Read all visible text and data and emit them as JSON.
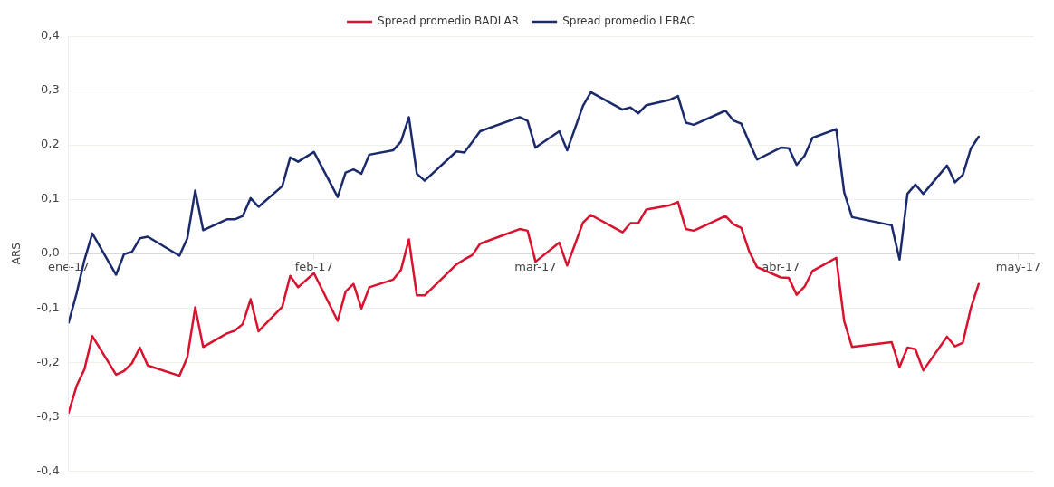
{
  "chart_data": {
    "type": "line",
    "ylabel": "ARS",
    "legend": "top",
    "grid": "y",
    "x": [
      "2017-01-01",
      "2017-01-02",
      "2017-01-03",
      "2017-01-04",
      "2017-01-07",
      "2017-01-08",
      "2017-01-09",
      "2017-01-10",
      "2017-01-11",
      "2017-01-15",
      "2017-01-16",
      "2017-01-17",
      "2017-01-18",
      "2017-01-21",
      "2017-01-22",
      "2017-01-23",
      "2017-01-24",
      "2017-01-25",
      "2017-01-28",
      "2017-01-29",
      "2017-01-30",
      "2017-02-01",
      "2017-02-04",
      "2017-02-05",
      "2017-02-06",
      "2017-02-07",
      "2017-02-08",
      "2017-02-11",
      "2017-02-12",
      "2017-02-13",
      "2017-02-14",
      "2017-02-15",
      "2017-02-19",
      "2017-02-20",
      "2017-02-21",
      "2017-02-22",
      "2017-02-27",
      "2017-02-28",
      "2017-03-01",
      "2017-03-04",
      "2017-03-05",
      "2017-03-07",
      "2017-03-08",
      "2017-03-12",
      "2017-03-13",
      "2017-03-14",
      "2017-03-15",
      "2017-03-18",
      "2017-03-19",
      "2017-03-20",
      "2017-03-21",
      "2017-03-25",
      "2017-03-26",
      "2017-03-27",
      "2017-03-28",
      "2017-03-29",
      "2017-04-01",
      "2017-04-02",
      "2017-04-03",
      "2017-04-04",
      "2017-04-05",
      "2017-04-08",
      "2017-04-09",
      "2017-04-10",
      "2017-04-15",
      "2017-04-16",
      "2017-04-17",
      "2017-04-18",
      "2017-04-19",
      "2017-04-22",
      "2017-04-23",
      "2017-04-24",
      "2017-04-25",
      "2017-04-26"
    ],
    "series": [
      {
        "name": "Spread promedio BADLAR",
        "color": "#d7132f",
        "values": [
          -0.293,
          -0.244,
          -0.213,
          -0.152,
          -0.223,
          -0.216,
          -0.202,
          -0.173,
          -0.206,
          -0.225,
          -0.191,
          -0.099,
          -0.172,
          -0.147,
          -0.142,
          -0.13,
          -0.084,
          -0.143,
          -0.098,
          -0.041,
          -0.062,
          -0.036,
          -0.124,
          -0.07,
          -0.056,
          -0.101,
          -0.062,
          -0.048,
          -0.03,
          0.026,
          -0.077,
          -0.077,
          -0.02,
          -0.011,
          -0.003,
          0.018,
          0.045,
          0.042,
          -0.015,
          0.02,
          -0.022,
          0.057,
          0.071,
          0.039,
          0.056,
          0.056,
          0.081,
          0.089,
          0.095,
          0.045,
          0.042,
          0.069,
          0.054,
          0.047,
          0.004,
          -0.025,
          -0.044,
          -0.045,
          -0.076,
          -0.061,
          -0.032,
          -0.008,
          -0.124,
          -0.172,
          -0.163,
          -0.209,
          -0.173,
          -0.176,
          -0.215,
          -0.153,
          -0.171,
          -0.164,
          -0.101,
          -0.056
        ]
      },
      {
        "name": "Spread promedio LEBAC",
        "color": "#1b2a6b",
        "values": [
          -0.127,
          -0.074,
          -0.012,
          0.037,
          -0.039,
          -0.001,
          0.003,
          0.028,
          0.031,
          -0.004,
          0.028,
          0.116,
          0.043,
          0.063,
          0.063,
          0.069,
          0.102,
          0.086,
          0.124,
          0.177,
          0.169,
          0.187,
          0.104,
          0.149,
          0.155,
          0.147,
          0.182,
          0.19,
          0.206,
          0.251,
          0.147,
          0.134,
          0.188,
          0.186,
          0.205,
          0.225,
          0.251,
          0.244,
          0.195,
          0.225,
          0.19,
          0.272,
          0.297,
          0.265,
          0.269,
          0.258,
          0.273,
          0.283,
          0.29,
          0.241,
          0.237,
          0.263,
          0.245,
          0.239,
          0.205,
          0.173,
          0.195,
          0.194,
          0.163,
          0.18,
          0.213,
          0.229,
          0.113,
          0.067,
          0.052,
          -0.011,
          0.11,
          0.127,
          0.11,
          0.162,
          0.131,
          0.145,
          0.193,
          0.215
        ]
      }
    ],
    "xlim": [
      "2017-01-01",
      "2017-05-03"
    ],
    "xticks": [
      {
        "value": "2017-01-01",
        "label": "ene-17"
      },
      {
        "value": "2017-02-01",
        "label": "feb-17"
      },
      {
        "value": "2017-03-01",
        "label": "mar-17"
      },
      {
        "value": "2017-04-01",
        "label": "abr-17"
      },
      {
        "value": "2017-05-01",
        "label": "may-17"
      }
    ],
    "ylim": [
      -0.4,
      0.4
    ],
    "yticks": [
      {
        "value": -0.4,
        "label": "-0,4"
      },
      {
        "value": -0.3,
        "label": "-0,3"
      },
      {
        "value": -0.2,
        "label": "-0,2"
      },
      {
        "value": -0.1,
        "label": "-0,1"
      },
      {
        "value": 0,
        "label": "0,0"
      },
      {
        "value": 0.1,
        "label": "0,1"
      },
      {
        "value": 0.2,
        "label": "0,2"
      },
      {
        "value": 0.3,
        "label": "0,3"
      },
      {
        "value": 0.4,
        "label": "0,4"
      }
    ]
  }
}
